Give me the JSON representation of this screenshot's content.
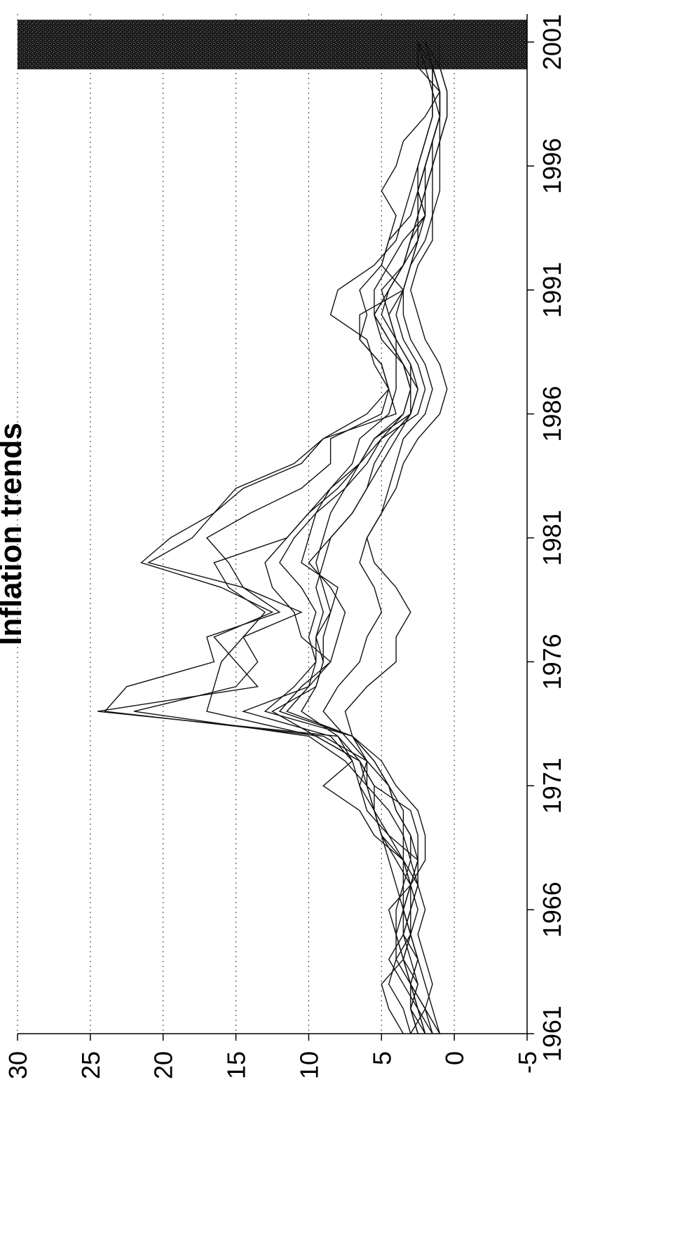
{
  "chart_data": {
    "type": "line",
    "title": "Inflation trends",
    "xlabel": "",
    "ylabel": "",
    "x": [
      1961,
      1962,
      1963,
      1964,
      1965,
      1966,
      1967,
      1968,
      1969,
      1970,
      1971,
      1972,
      1973,
      1974,
      1975,
      1976,
      1977,
      1978,
      1979,
      1980,
      1981,
      1982,
      1983,
      1984,
      1985,
      1986,
      1987,
      1988,
      1989,
      1990,
      1991,
      1992,
      1993,
      1994,
      1995,
      1996,
      1997,
      1998,
      1999,
      2000,
      2001
    ],
    "xlim": [
      1961,
      2001
    ],
    "ylim": [
      -5,
      30
    ],
    "x_ticks": [
      "1961",
      "1966",
      "1971",
      "1976",
      "1981",
      "1986",
      "1991",
      "1996",
      "2001"
    ],
    "y_ticks": [
      "-5",
      "0",
      "5",
      "10",
      "15",
      "20",
      "25",
      "30"
    ],
    "grid": "horizontal dotted",
    "shaded_region": {
      "from": 1999.9,
      "to": 2001.9,
      "style": "dark speckled"
    },
    "series": [
      {
        "values": [
          2.0,
          3.0,
          2.5,
          3.5,
          4.0,
          4.5,
          3.0,
          2.5,
          4.5,
          5.5,
          6.5,
          6.0,
          9.0,
          24.0,
          22.5,
          16.5,
          17.0,
          12.0,
          14.5,
          21.0,
          18.0,
          16.5,
          14.5,
          10.5,
          9.0,
          6.0,
          4.5,
          5.0,
          6.5,
          6.0,
          6.5,
          5.0,
          4.5,
          3.0,
          2.5,
          2.5,
          2.0,
          1.5,
          1.5,
          2.0,
          2.5
        ]
      },
      {
        "values": [
          3.5,
          4.5,
          5.0,
          3.5,
          3.0,
          2.5,
          3.0,
          3.5,
          5.5,
          6.5,
          9.0,
          7.0,
          8.0,
          24.5,
          13.5,
          15.0,
          16.5,
          12.5,
          16.0,
          21.5,
          19.5,
          16.5,
          15.0,
          11.0,
          9.0,
          4.0,
          4.5,
          5.0,
          6.5,
          6.5,
          3.5,
          5.0,
          4.5,
          4.0,
          5.0,
          4.0,
          3.5,
          2.0,
          1.0,
          2.5,
          2.5
        ]
      },
      {
        "values": [
          3.0,
          3.5,
          4.5,
          4.0,
          3.0,
          3.5,
          4.0,
          4.5,
          5.0,
          5.5,
          6.0,
          6.5,
          9.5,
          17.0,
          16.5,
          16.0,
          14.5,
          10.5,
          14.5,
          15.5,
          17.0,
          14.0,
          10.5,
          8.5,
          8.5,
          5.0,
          4.5,
          5.5,
          6.0,
          8.5,
          8.0,
          5.5,
          4.0,
          3.5,
          3.0,
          2.5,
          2.0,
          1.5,
          1.5,
          1.5,
          2.5
        ]
      },
      {
        "values": [
          2.5,
          3.0,
          2.5,
          3.0,
          3.5,
          3.0,
          2.5,
          3.5,
          5.0,
          5.5,
          6.0,
          7.5,
          10.0,
          22.0,
          15.0,
          13.5,
          14.5,
          13.0,
          15.5,
          16.5,
          11.5,
          10.0,
          8.5,
          7.0,
          6.5,
          4.5,
          4.0,
          4.0,
          4.0,
          4.5,
          5.0,
          3.5,
          3.0,
          2.0,
          2.5,
          2.0,
          1.5,
          1.0,
          1.0,
          1.5,
          2.0
        ]
      },
      {
        "values": [
          1.0,
          2.0,
          3.0,
          3.5,
          4.0,
          4.0,
          3.5,
          3.5,
          4.5,
          6.0,
          6.5,
          7.0,
          8.5,
          14.5,
          10.0,
          8.5,
          10.5,
          11.0,
          12.5,
          13.0,
          11.5,
          10.0,
          8.0,
          6.5,
          5.5,
          3.5,
          3.0,
          3.5,
          4.5,
          5.5,
          4.5,
          3.5,
          3.0,
          2.5,
          2.5,
          2.0,
          1.5,
          1.0,
          1.0,
          1.5,
          2.0
        ]
      },
      {
        "values": [
          2.5,
          3.0,
          3.0,
          2.5,
          3.5,
          3.0,
          3.0,
          2.0,
          2.0,
          2.5,
          4.0,
          5.0,
          7.0,
          11.5,
          10.0,
          9.5,
          10.0,
          9.5,
          10.5,
          12.0,
          11.0,
          9.5,
          8.5,
          6.5,
          5.5,
          3.0,
          3.0,
          3.5,
          4.5,
          5.5,
          4.5,
          3.5,
          2.5,
          2.5,
          2.0,
          2.0,
          1.5,
          1.0,
          1.0,
          1.5,
          2.0
        ]
      },
      {
        "values": [
          3.0,
          2.0,
          3.0,
          4.0,
          4.0,
          3.5,
          3.0,
          2.5,
          2.5,
          3.0,
          5.5,
          6.5,
          8.0,
          10.5,
          9.5,
          9.0,
          9.5,
          8.5,
          9.0,
          9.5,
          9.0,
          8.5,
          7.5,
          6.5,
          5.0,
          3.5,
          3.0,
          3.0,
          4.0,
          5.0,
          4.5,
          3.5,
          3.0,
          2.5,
          2.0,
          1.5,
          1.5,
          1.0,
          1.0,
          1.5,
          2.0
        ]
      },
      {
        "values": [
          1.5,
          2.5,
          3.5,
          4.5,
          3.5,
          3.5,
          3.0,
          3.5,
          3.5,
          3.5,
          4.5,
          6.0,
          7.0,
          13.0,
          11.0,
          9.5,
          9.5,
          9.0,
          9.5,
          9.0,
          8.5,
          7.0,
          6.0,
          5.5,
          4.5,
          3.0,
          2.5,
          3.5,
          5.0,
          5.5,
          5.5,
          4.5,
          3.5,
          2.0,
          2.5,
          2.0,
          1.5,
          1.0,
          1.5,
          1.5,
          2.0
        ]
      },
      {
        "values": [
          2.0,
          2.5,
          3.0,
          3.5,
          3.0,
          3.0,
          2.5,
          2.5,
          3.0,
          4.0,
          4.5,
          5.5,
          7.0,
          12.0,
          10.5,
          8.5,
          8.0,
          7.5,
          8.5,
          10.0,
          8.5,
          7.0,
          6.0,
          5.0,
          4.0,
          3.0,
          2.5,
          3.0,
          4.0,
          4.5,
          3.5,
          3.0,
          2.5,
          2.0,
          2.0,
          1.5,
          1.0,
          1.0,
          1.0,
          1.5,
          2.0
        ]
      },
      {
        "values": [
          1.0,
          1.5,
          2.0,
          2.5,
          3.0,
          3.5,
          3.0,
          4.0,
          5.0,
          5.5,
          5.5,
          6.5,
          9.5,
          12.5,
          9.5,
          9.0,
          9.0,
          8.5,
          8.0,
          10.5,
          10.0,
          9.5,
          7.5,
          6.0,
          5.0,
          2.5,
          2.0,
          2.5,
          3.5,
          4.0,
          3.5,
          3.0,
          2.0,
          1.5,
          1.5,
          1.5,
          1.0,
          0.5,
          0.5,
          1.0,
          2.0
        ]
      },
      {
        "values": [
          1.5,
          2.0,
          1.5,
          2.0,
          2.5,
          2.0,
          2.5,
          3.0,
          3.0,
          4.0,
          4.5,
          5.5,
          7.0,
          7.5,
          6.0,
          4.0,
          4.0,
          3.0,
          4.0,
          5.5,
          6.0,
          5.0,
          4.0,
          3.5,
          2.5,
          1.0,
          0.5,
          1.0,
          2.0,
          2.5,
          3.0,
          2.5,
          1.5,
          1.5,
          1.0,
          1.0,
          1.0,
          0.5,
          0.5,
          1.0,
          1.0
        ]
      },
      {
        "values": [
          2.0,
          2.5,
          3.0,
          2.5,
          3.0,
          3.5,
          3.5,
          3.0,
          3.5,
          4.5,
          6.0,
          6.0,
          7.5,
          9.0,
          8.0,
          6.5,
          6.0,
          5.0,
          5.5,
          6.5,
          6.0,
          5.0,
          4.5,
          4.0,
          3.5,
          2.0,
          1.5,
          2.0,
          3.0,
          3.5,
          3.5,
          3.0,
          2.5,
          2.5,
          2.5,
          2.0,
          1.5,
          1.0,
          1.0,
          1.5,
          2.0
        ]
      }
    ]
  }
}
